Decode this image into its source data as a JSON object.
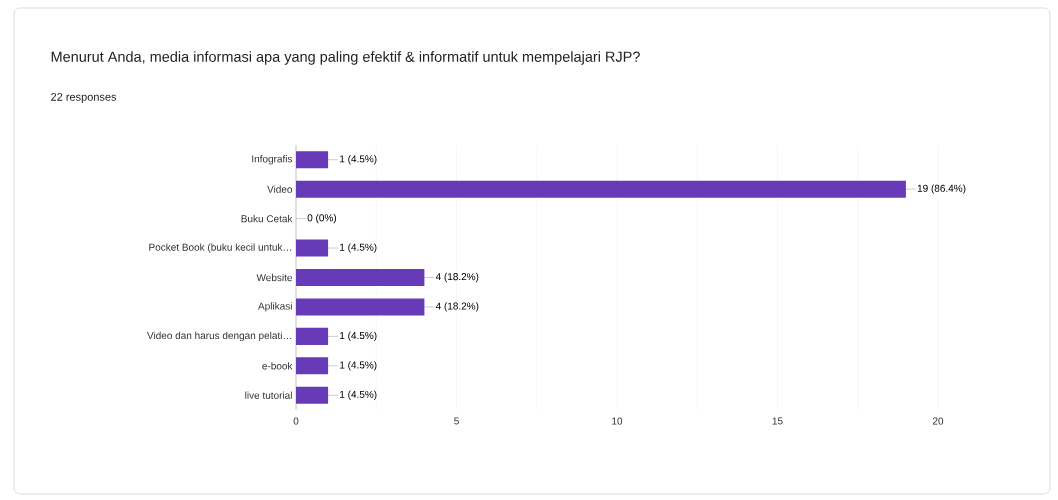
{
  "chart_data": {
    "type": "bar",
    "orientation": "horizontal",
    "title": "Menurut Anda, media informasi apa yang paling efektif & informatif untuk mempelajari RJP?",
    "subtitle": "22 responses",
    "categories": [
      "Infografis",
      "Video",
      "Buku Cetak",
      "Pocket Book (buku kecil untuk…",
      "Website",
      "Aplikasi",
      "Video dan harus dengan pelati…",
      "e-book",
      "live tutorial"
    ],
    "values": [
      1,
      19,
      0,
      1,
      4,
      4,
      1,
      1,
      1
    ],
    "value_labels": [
      "1 (4.5%)",
      "19 (86.4%)",
      "0 (0%)",
      "1 (4.5%)",
      "4 (18.2%)",
      "4 (18.2%)",
      "1 (4.5%)",
      "1 (4.5%)",
      "1 (4.5%)"
    ],
    "color": "#673ab7",
    "xlim": [
      0,
      20
    ],
    "xticks": [
      0,
      {
        "value": 2.5,
        "label": null
      },
      5,
      {
        "value": 7.5,
        "label": null
      },
      10,
      {
        "value": 12.5,
        "label": null
      },
      15,
      {
        "value": 17.5,
        "label": null
      },
      20
    ],
    "grid": "x"
  }
}
